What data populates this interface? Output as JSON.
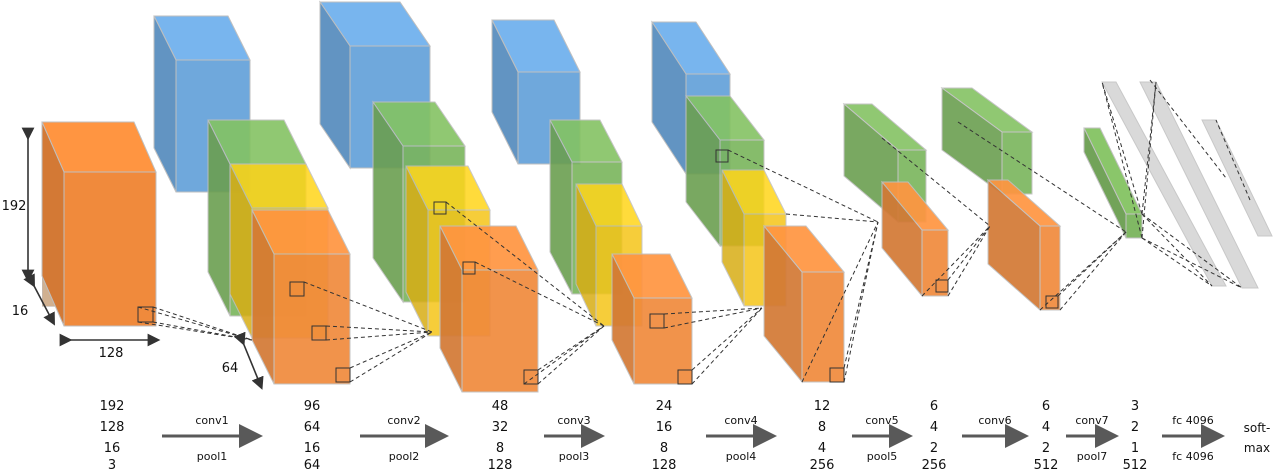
{
  "input_dims": {
    "height": "192",
    "depth": "16",
    "width": "128",
    "kernel": "64"
  },
  "columns": [
    {
      "l1": "192",
      "l2": "128",
      "l3": "16",
      "l4": "3"
    },
    {
      "l1": "96",
      "l2": "64",
      "l3": "16",
      "l4": "64"
    },
    {
      "l1": "48",
      "l2": "32",
      "l3": "8",
      "l4": "128"
    },
    {
      "l1": "24",
      "l2": "16",
      "l3": "8",
      "l4": "128"
    },
    {
      "l1": "12",
      "l2": "8",
      "l3": "4",
      "l4": "256"
    },
    {
      "l1": "6",
      "l2": "4",
      "l3": "2",
      "l4": "256"
    },
    {
      "l1": "6",
      "l2": "4",
      "l3": "2",
      "l4": "512"
    },
    {
      "l1": "3",
      "l2": "2",
      "l3": "1",
      "l4": "512"
    },
    {
      "l1": "soft-",
      "l2": "max"
    }
  ],
  "ops": [
    {
      "top": "conv1",
      "bottom": "pool1"
    },
    {
      "top": "conv2",
      "bottom": "pool2"
    },
    {
      "top": "conv3",
      "bottom": "pool3"
    },
    {
      "top": "conv4",
      "bottom": "pool4"
    },
    {
      "top": "conv5",
      "bottom": "pool5"
    },
    {
      "top": "conv6",
      "bottom": ""
    },
    {
      "top": "conv7",
      "bottom": "pool7"
    },
    {
      "top": "fc 4096",
      "bottom": "fc 4096"
    }
  ],
  "colors": {
    "blue": "#6fa8dc",
    "green": "#7ab55c",
    "yellow": "#f5c518",
    "orange": "#f08a3c",
    "gray": "#d9d9d9",
    "edge": "#bfbfbf",
    "arrow": "#595959"
  }
}
